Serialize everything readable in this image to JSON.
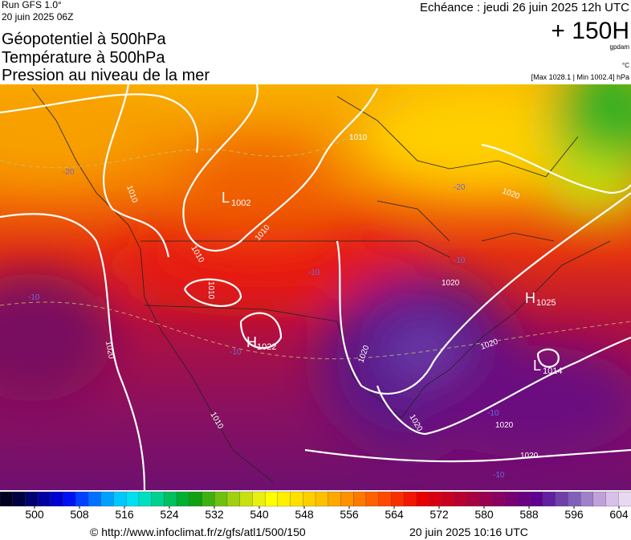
{
  "header": {
    "run": "Run GFS 1.0°",
    "run_date": "20 juin 2025 06Z",
    "titles": [
      "Géopotentiel à 500hPa",
      "Température à 500hPa",
      "Pression au niveau de la mer"
    ],
    "echeance": "Echéance : jeudi 26 juin 2025 12h UTC",
    "lead": "+ 150H",
    "unit_geo": "gpdam",
    "unit_temp": "°C",
    "pressure_range": "[Max 1028.1 | Min 1002.4] hPa"
  },
  "map": {
    "centers": [
      {
        "letter": "L",
        "value": "1002"
      },
      {
        "letter": "H",
        "value": "1022"
      },
      {
        "letter": "H",
        "value": "1025"
      },
      {
        "letter": "L",
        "value": "1014"
      }
    ],
    "isobar_labels": [
      "1010",
      "1010",
      "1010",
      "1010",
      "1010",
      "1020",
      "1020",
      "1020",
      "1020",
      "1020",
      "1020",
      "1020",
      "1020"
    ],
    "temperature_labels": [
      "-20",
      "-20",
      "-10",
      "-10",
      "-10",
      "-10",
      "-10",
      "-10"
    ]
  },
  "colorbar": {
    "ticks": [
      500,
      508,
      516,
      524,
      532,
      540,
      548,
      556,
      564,
      572,
      580,
      588,
      596,
      604
    ],
    "colors": [
      "#000020",
      "#000040",
      "#000070",
      "#0000a0",
      "#0000d0",
      "#0010f0",
      "#0040ff",
      "#0070ff",
      "#00a0ff",
      "#00c8ff",
      "#00e0f0",
      "#00e0c0",
      "#00d090",
      "#00c060",
      "#00b030",
      "#10a010",
      "#40b010",
      "#70c010",
      "#a0d010",
      "#c8e010",
      "#e8f010",
      "#ffff00",
      "#fff000",
      "#ffe000",
      "#ffd000",
      "#ffc000",
      "#ffa800",
      "#ff9000",
      "#ff7800",
      "#ff6000",
      "#ff4800",
      "#f83000",
      "#f01800",
      "#e80000",
      "#d80010",
      "#c80020",
      "#b80030",
      "#a80040",
      "#980050",
      "#880060",
      "#780070",
      "#680080",
      "#600090",
      "#6020a0",
      "#7040a8",
      "#8060b8",
      "#a080c8",
      "#c0a0d8",
      "#d8c0e8",
      "#e8d8f0"
    ]
  },
  "footer": {
    "source": "© http://www.infoclimat.fr/z/gfs/atl1/500/150",
    "generated": "20 juin 2025 10:16 UTC"
  }
}
